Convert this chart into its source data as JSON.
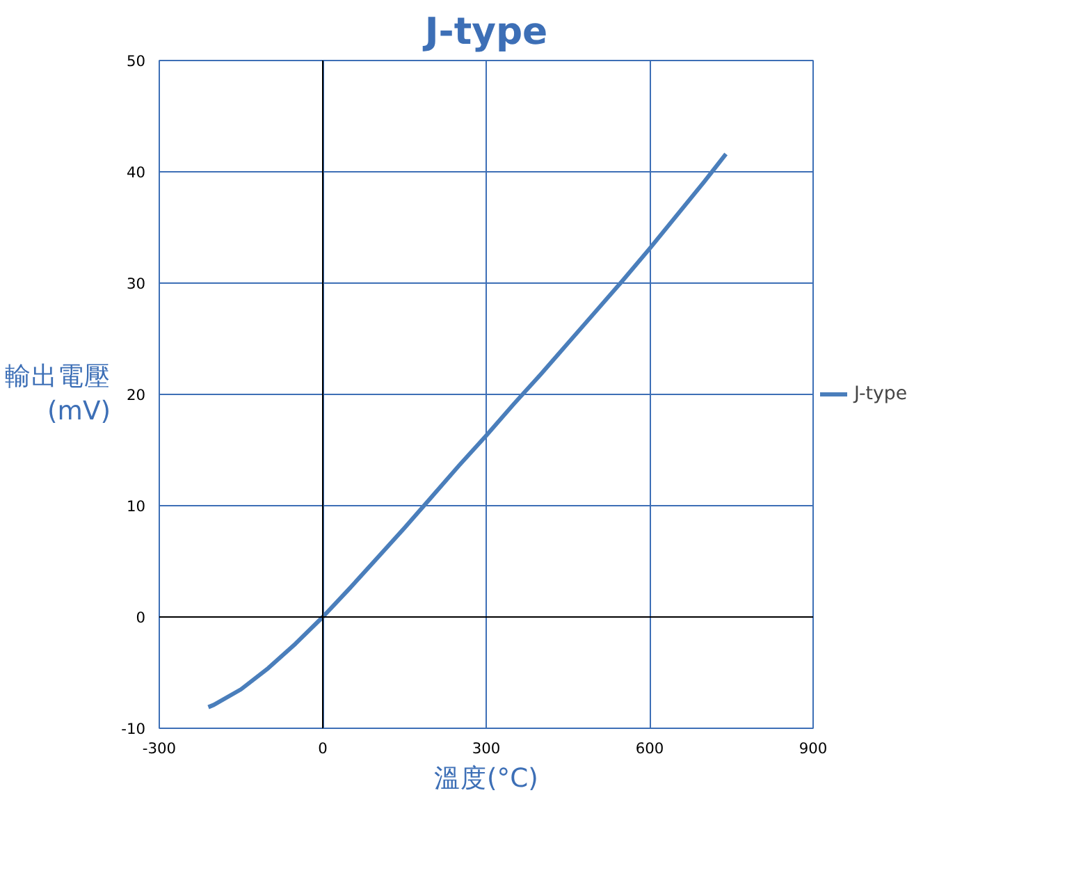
{
  "chart_data": {
    "type": "line",
    "title": "J-type",
    "xlabel": "溫度(°C)",
    "ylabel": "輸出電壓\n(mV)",
    "x": [
      -210,
      -200,
      -150,
      -100,
      -50,
      0,
      50,
      100,
      150,
      200,
      250,
      300,
      350,
      400,
      450,
      500,
      550,
      600,
      650,
      700,
      740
    ],
    "series": [
      {
        "name": "J-type",
        "color": "#4a7ebb",
        "values": [
          -8.1,
          -7.9,
          -6.5,
          -4.6,
          -2.4,
          0,
          2.6,
          5.3,
          8.0,
          10.8,
          13.6,
          16.3,
          19.1,
          21.8,
          24.6,
          27.4,
          30.2,
          33.1,
          36.1,
          39.1,
          41.6
        ]
      }
    ],
    "xlim": [
      -300,
      900
    ],
    "ylim": [
      -10,
      50
    ],
    "xticks": [
      -300,
      0,
      300,
      600,
      900
    ],
    "yticks": [
      -10,
      0,
      10,
      20,
      30,
      40,
      50
    ],
    "grid": true,
    "legend": "right",
    "marker": "none",
    "line_style": "solid"
  }
}
